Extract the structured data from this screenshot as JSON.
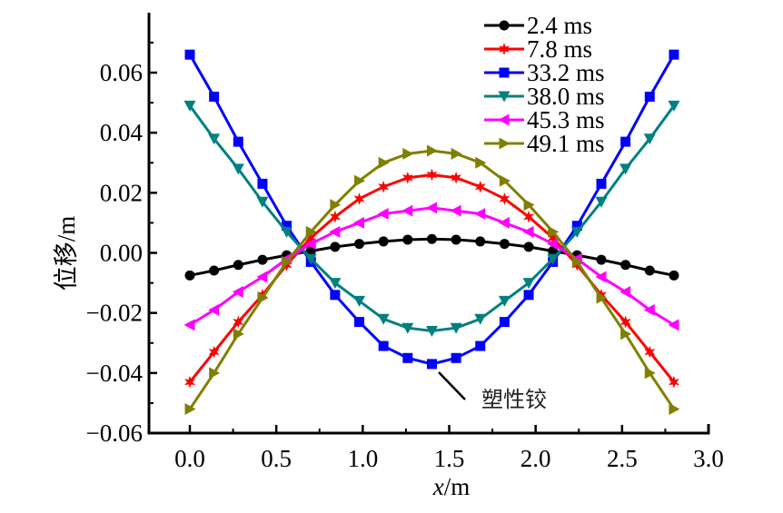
{
  "chart_data": {
    "type": "line",
    "title": "",
    "xlabel_italic": "x",
    "xlabel_unit": "/m",
    "ylabel": "位移/m",
    "xlim": [
      -0.2,
      3.0
    ],
    "ylim": [
      -0.06,
      0.075
    ],
    "x_ticks": [
      "0.0",
      "0.5",
      "1.0",
      "1.5",
      "2.0",
      "2.5",
      "3.0"
    ],
    "x_tick_values": [
      0.0,
      0.5,
      1.0,
      1.5,
      2.0,
      2.5,
      3.0
    ],
    "y_ticks": [
      "0.06",
      "0.04",
      "0.02",
      "0.00",
      "−0.02",
      "−0.04",
      "−0.06"
    ],
    "y_tick_values": [
      0.06,
      0.04,
      0.02,
      0.0,
      -0.02,
      -0.04,
      -0.06
    ],
    "x": [
      0.0,
      0.14,
      0.28,
      0.42,
      0.56,
      0.7,
      0.84,
      0.98,
      1.12,
      1.26,
      1.4,
      1.54,
      1.68,
      1.82,
      1.96,
      2.1,
      2.24,
      2.38,
      2.52,
      2.66,
      2.8
    ],
    "series": [
      {
        "name": "2.4 ms",
        "color": "#000000",
        "marker": "circle",
        "values": [
          -0.0075,
          -0.0059,
          -0.004,
          -0.0023,
          -0.0008,
          0.0006,
          0.002,
          0.003,
          0.0038,
          0.0044,
          0.0046,
          0.0044,
          0.0038,
          0.003,
          0.002,
          0.0006,
          -0.0008,
          -0.0023,
          -0.004,
          -0.0059,
          -0.0075
        ]
      },
      {
        "name": "7.8 ms",
        "color": "#ff0000",
        "marker": "star",
        "values": [
          -0.043,
          -0.033,
          -0.023,
          -0.014,
          -0.004,
          0.005,
          0.012,
          0.018,
          0.022,
          0.025,
          0.026,
          0.025,
          0.022,
          0.018,
          0.012,
          0.005,
          -0.004,
          -0.014,
          -0.023,
          -0.033,
          -0.043
        ]
      },
      {
        "name": "33.2 ms",
        "color": "#0000ff",
        "marker": "square",
        "values": [
          0.066,
          0.052,
          0.037,
          0.023,
          0.009,
          -0.003,
          -0.014,
          -0.023,
          -0.031,
          -0.035,
          -0.037,
          -0.035,
          -0.031,
          -0.023,
          -0.014,
          -0.003,
          0.009,
          0.023,
          0.037,
          0.052,
          0.066
        ]
      },
      {
        "name": "38.0 ms",
        "color": "#008080",
        "marker": "triangle-down",
        "values": [
          0.049,
          0.038,
          0.028,
          0.017,
          0.007,
          -0.002,
          -0.01,
          -0.016,
          -0.022,
          -0.025,
          -0.026,
          -0.025,
          -0.022,
          -0.016,
          -0.01,
          -0.002,
          0.007,
          0.017,
          0.028,
          0.038,
          0.049
        ]
      },
      {
        "name": "45.3 ms",
        "color": "#ff00ff",
        "marker": "triangle-left",
        "values": [
          -0.024,
          -0.019,
          -0.013,
          -0.008,
          -0.002,
          0.003,
          0.007,
          0.01,
          0.013,
          0.014,
          0.015,
          0.014,
          0.013,
          0.01,
          0.007,
          0.003,
          -0.002,
          -0.008,
          -0.013,
          -0.019,
          -0.024
        ]
      },
      {
        "name": "49.1 ms",
        "color": "#808000",
        "marker": "triangle-right",
        "values": [
          -0.052,
          -0.04,
          -0.027,
          -0.015,
          -0.003,
          0.007,
          0.016,
          0.024,
          0.03,
          0.033,
          0.034,
          0.033,
          0.03,
          0.024,
          0.016,
          0.007,
          -0.003,
          -0.015,
          -0.027,
          -0.04,
          -0.052
        ]
      }
    ],
    "legend_position": "top-right",
    "annotations": [
      {
        "text": "塑性铰",
        "target_series": "33.2 ms",
        "target_x": 1.4
      }
    ],
    "grid": false
  }
}
